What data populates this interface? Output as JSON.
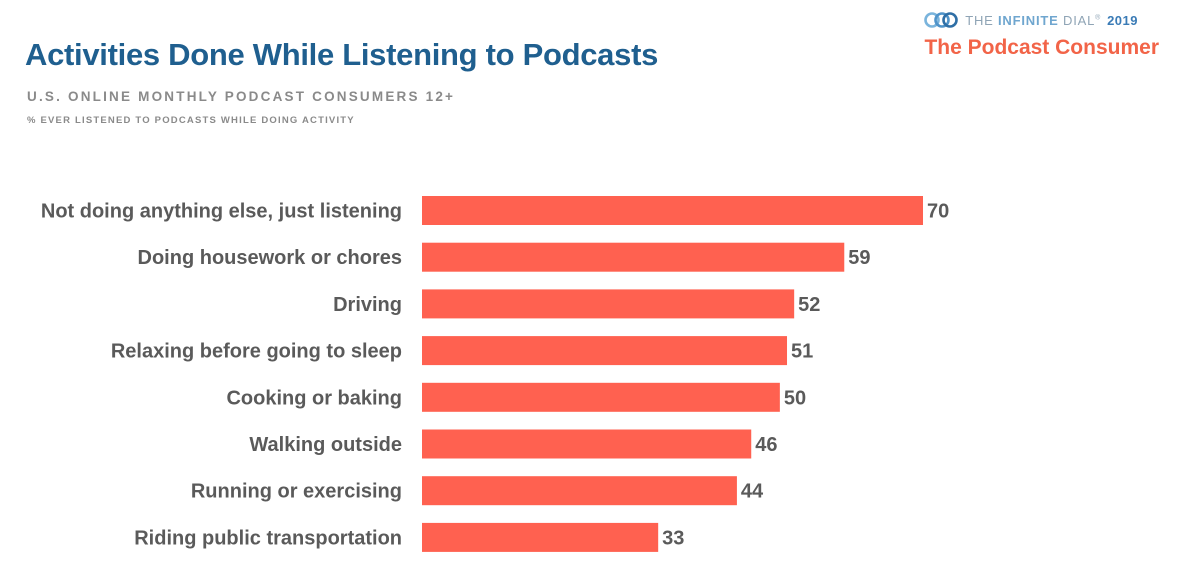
{
  "header": {
    "title": "Activities Done While Listening to Podcasts",
    "subtitle": "U.S. ONLINE MONTHLY PODCAST CONSUMERS 12+",
    "note": "% EVER LISTENED TO PODCASTS WHILE DOING ACTIVITY"
  },
  "brand": {
    "logo_icon": "infinity-logo-icon",
    "prefix": "THE ",
    "name": "INFINITE",
    "suffix": " DIAL",
    "registered": "®",
    "year": "2019",
    "section": "The Podcast Consumer"
  },
  "colors": {
    "bar": "#ff6150",
    "title": "#1f5f8f",
    "label": "#5a5a5a",
    "section": "#f26448"
  },
  "chart_data": {
    "type": "bar",
    "orientation": "horizontal",
    "categories": [
      "Not doing anything else, just listening",
      "Doing housework or chores",
      "Driving",
      "Relaxing before going to sleep",
      "Cooking or baking",
      "Walking outside",
      "Running or exercising",
      "Riding public transportation"
    ],
    "values": [
      70,
      59,
      52,
      51,
      50,
      46,
      44,
      33
    ],
    "title": "Activities Done While Listening to Podcasts",
    "xlabel": "",
    "ylabel": "",
    "xlim": [
      0,
      70
    ],
    "grid": false,
    "legend": "none"
  }
}
